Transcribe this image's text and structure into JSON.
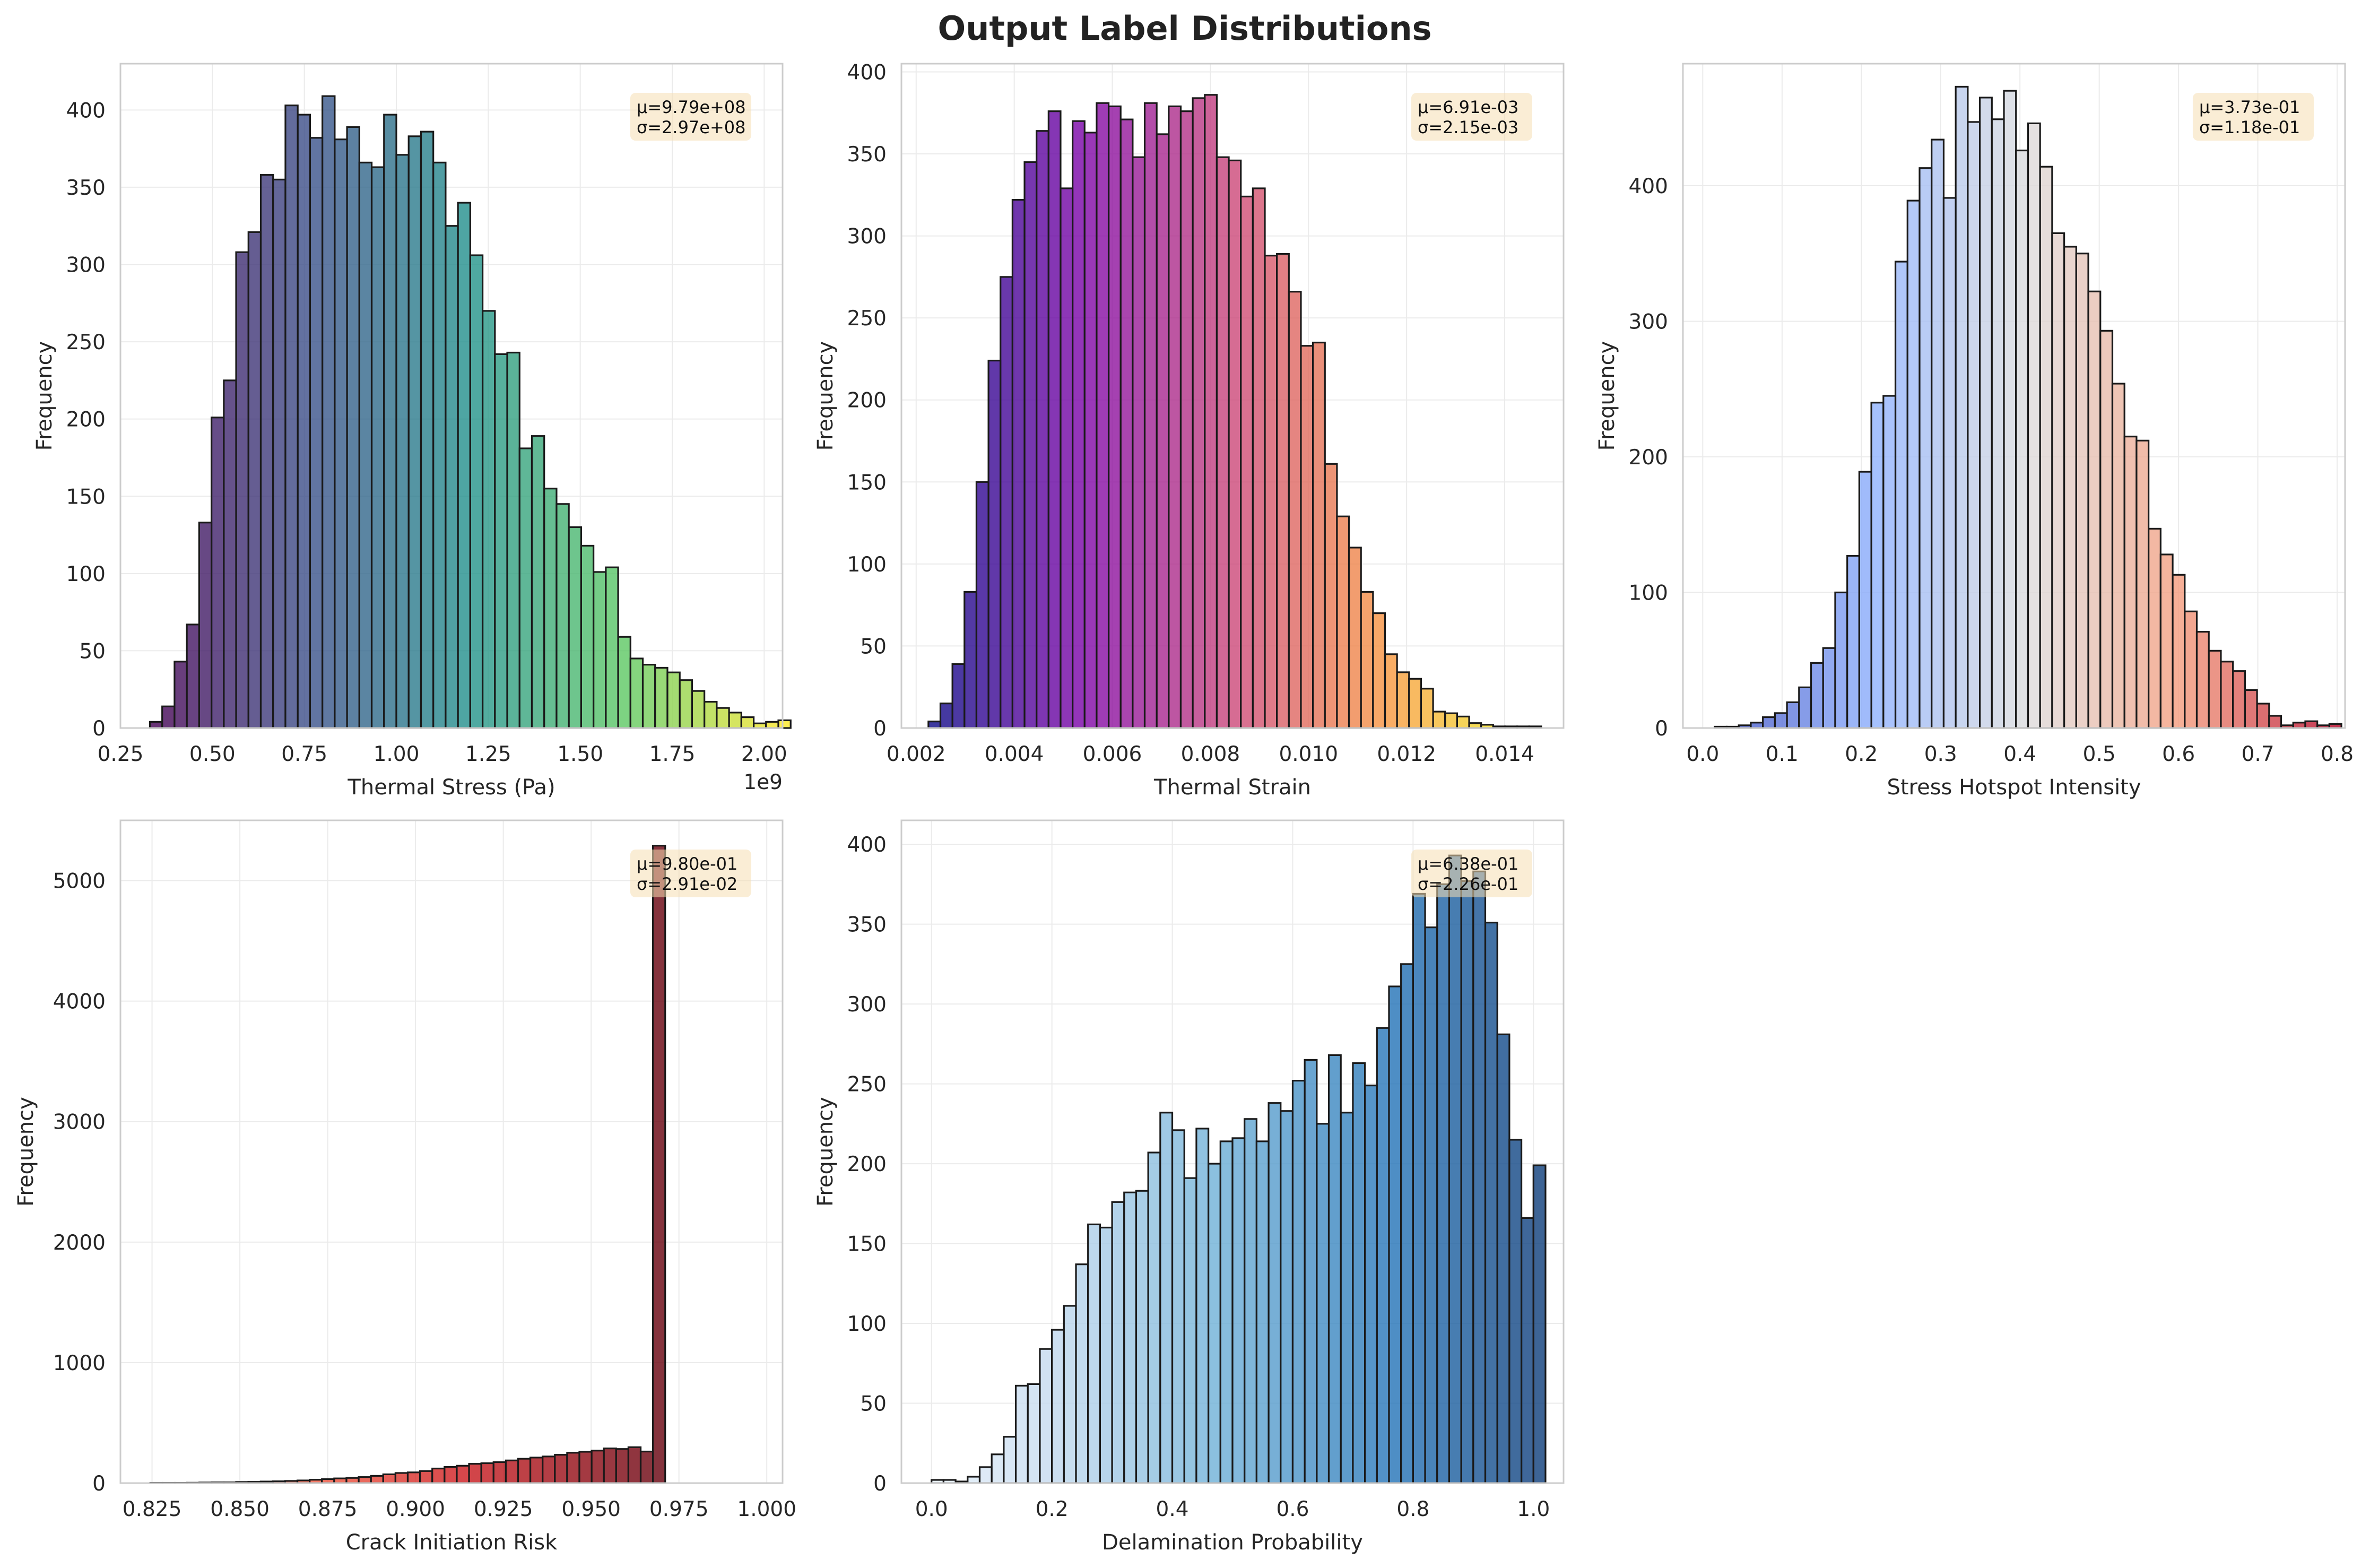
{
  "figure": {
    "title": "Output Label Distributions"
  },
  "chart_data": [
    {
      "type": "bar",
      "colormap": "viridis",
      "xlabel": "Thermal Stress (Pa)",
      "ylabel": "Frequency",
      "x_offset_label": "1e9",
      "xlim": [
        0.25,
        2.05
      ],
      "ylim": [
        0,
        430
      ],
      "xticks": [
        0.25,
        0.5,
        0.75,
        1.0,
        1.25,
        1.5,
        1.75,
        2.0
      ],
      "xtick_labels": [
        "0.25",
        "0.50",
        "0.75",
        "1.00",
        "1.25",
        "1.50",
        "1.75",
        "2.00"
      ],
      "yticks": [
        0,
        50,
        100,
        150,
        200,
        250,
        300,
        350,
        400
      ],
      "ytick_labels": [
        "0",
        "50",
        "100",
        "150",
        "200",
        "250",
        "300",
        "350",
        "400"
      ],
      "bin_start": 0.33,
      "bin_width": 0.0335,
      "values": [
        4,
        14,
        43,
        67,
        133,
        201,
        225,
        308,
        321,
        358,
        355,
        403,
        397,
        382,
        409,
        381,
        389,
        366,
        363,
        397,
        371,
        383,
        386,
        366,
        325,
        340,
        306,
        270,
        242,
        243,
        181,
        189,
        155,
        145,
        130,
        118,
        101,
        104,
        59,
        45,
        41,
        39,
        36,
        31,
        24,
        17,
        13,
        10,
        7,
        3,
        4,
        5
      ],
      "stats": {
        "mean": "μ=9.79e+08",
        "std": "σ=2.97e+08"
      }
    },
    {
      "type": "bar",
      "colormap": "plasma",
      "xlabel": "Thermal Strain",
      "ylabel": "Frequency",
      "xlim": [
        0.0017,
        0.0152
      ],
      "ylim": [
        0,
        405
      ],
      "xticks": [
        0.002,
        0.004,
        0.006,
        0.008,
        0.01,
        0.012,
        0.014
      ],
      "xtick_labels": [
        "0.002",
        "0.004",
        "0.006",
        "0.008",
        "0.010",
        "0.012",
        "0.014"
      ],
      "yticks": [
        0,
        50,
        100,
        150,
        200,
        250,
        300,
        350,
        400
      ],
      "ytick_labels": [
        "0",
        "50",
        "100",
        "150",
        "200",
        "250",
        "300",
        "350",
        "400"
      ],
      "bin_start": 0.00225,
      "bin_width": 0.000245,
      "values": [
        4,
        15,
        39,
        83,
        150,
        224,
        275,
        322,
        345,
        364,
        376,
        329,
        370,
        363,
        381,
        379,
        371,
        348,
        381,
        362,
        379,
        376,
        384,
        386,
        348,
        346,
        324,
        329,
        288,
        289,
        266,
        233,
        235,
        161,
        129,
        110,
        83,
        70,
        45,
        34,
        30,
        24,
        10,
        9,
        7,
        3,
        2,
        1,
        1,
        1,
        1
      ],
      "stats": {
        "mean": "μ=6.91e-03",
        "std": "σ=2.15e-03"
      }
    },
    {
      "type": "bar",
      "colormap": "coolwarm",
      "xlabel": "Stress Hotspot Intensity",
      "ylabel": "Frequency",
      "xlim": [
        -0.025,
        0.81
      ],
      "ylim": [
        0,
        490
      ],
      "xticks": [
        0.0,
        0.1,
        0.2,
        0.3,
        0.4,
        0.5,
        0.6,
        0.7,
        0.8
      ],
      "xtick_labels": [
        "0.0",
        "0.1",
        "0.2",
        "0.3",
        "0.4",
        "0.5",
        "0.6",
        "0.7",
        "0.8"
      ],
      "yticks": [
        0,
        100,
        200,
        300,
        400
      ],
      "ytick_labels": [
        "0",
        "100",
        "200",
        "300",
        "400"
      ],
      "bin_start": 0.015,
      "bin_width": 0.0152,
      "values": [
        1,
        1,
        2,
        4,
        8,
        11,
        19,
        30,
        48,
        59,
        100,
        127,
        189,
        240,
        245,
        344,
        389,
        413,
        434,
        391,
        473,
        447,
        465,
        449,
        470,
        426,
        446,
        414,
        365,
        355,
        350,
        322,
        293,
        254,
        215,
        212,
        147,
        128,
        113,
        86,
        71,
        57,
        49,
        42,
        28,
        18,
        9,
        2,
        4,
        5,
        2,
        3
      ],
      "stats": {
        "mean": "μ=3.73e-01",
        "std": "σ=1.18e-01"
      }
    },
    {
      "type": "bar",
      "colormap": "Reds",
      "xlabel": "Crack Initiation Risk",
      "ylabel": "Frequency",
      "xlim": [
        0.816,
        1.0045
      ],
      "ylim": [
        0,
        5500
      ],
      "xticks": [
        0.825,
        0.85,
        0.875,
        0.9,
        0.925,
        0.95,
        0.975,
        1.0
      ],
      "xtick_labels": [
        "0.825",
        "0.850",
        "0.875",
        "0.900",
        "0.925",
        "0.950",
        "0.975",
        "1.000"
      ],
      "yticks": [
        0,
        1000,
        2000,
        3000,
        4000,
        5000
      ],
      "ytick_labels": [
        "0",
        "1000",
        "2000",
        "3000",
        "4000",
        "5000"
      ],
      "bin_start": 0.8245,
      "bin_width": 0.00349,
      "values": [
        2,
        2,
        2,
        3,
        5,
        6,
        6,
        9,
        10,
        13,
        15,
        18,
        22,
        28,
        33,
        39,
        43,
        50,
        60,
        73,
        84,
        89,
        100,
        121,
        134,
        144,
        160,
        165,
        174,
        188,
        202,
        212,
        221,
        235,
        252,
        260,
        270,
        288,
        283,
        298,
        262,
        5290
      ],
      "stats": {
        "mean": "μ=9.80e-01",
        "std": "σ=2.91e-02"
      }
    },
    {
      "type": "bar",
      "colormap": "Blues",
      "xlabel": "Delamination Probability",
      "ylabel": "Frequency",
      "xlim": [
        -0.05,
        1.05
      ],
      "ylim": [
        0,
        415
      ],
      "xticks": [
        0.0,
        0.2,
        0.4,
        0.6,
        0.8,
        1.0
      ],
      "xtick_labels": [
        "0.0",
        "0.2",
        "0.4",
        "0.6",
        "0.8",
        "1.0"
      ],
      "yticks": [
        0,
        50,
        100,
        150,
        200,
        250,
        300,
        350,
        400
      ],
      "ytick_labels": [
        "0",
        "50",
        "100",
        "150",
        "200",
        "250",
        "300",
        "350",
        "400"
      ],
      "bin_start": 0.0,
      "bin_width": 0.02,
      "values": [
        2,
        2,
        1,
        4,
        10,
        18,
        29,
        61,
        62,
        84,
        96,
        111,
        137,
        162,
        160,
        176,
        182,
        183,
        207,
        232,
        221,
        191,
        222,
        200,
        214,
        216,
        228,
        214,
        238,
        233,
        252,
        265,
        225,
        268,
        232,
        263,
        249,
        285,
        311,
        325,
        369,
        348,
        375,
        393,
        377,
        383,
        351,
        281,
        215,
        166,
        199
      ],
      "stats": {
        "mean": "μ=6.38e-01",
        "std": "σ=2.26e-01"
      }
    }
  ]
}
